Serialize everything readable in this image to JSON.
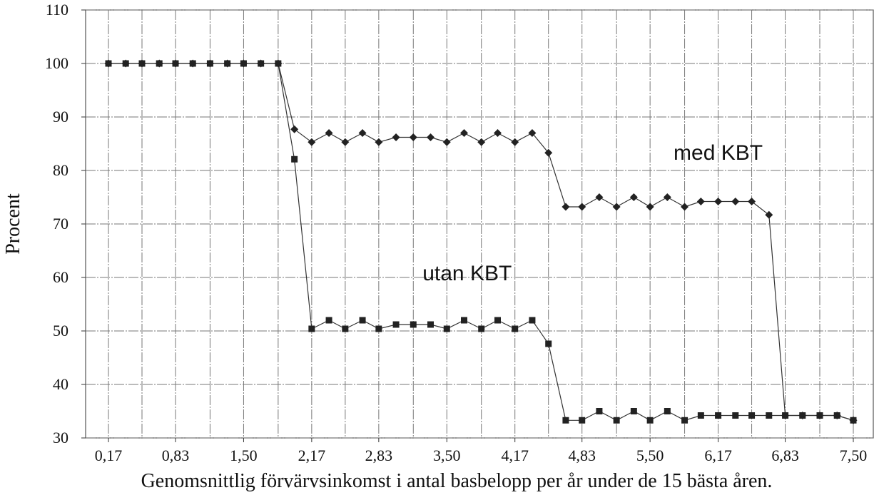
{
  "chart_data": {
    "type": "line",
    "title": "",
    "xlabel": "Genomsnittlig  förvärvsinkomst i antal basbelopp per år under de 15 bästa åren.",
    "ylabel": "Procent",
    "ylim": [
      30,
      110
    ],
    "xlim": [
      0.17,
      7.5
    ],
    "yticks": [
      30,
      40,
      50,
      60,
      70,
      80,
      90,
      100,
      110
    ],
    "xtick_labels": [
      "0,17",
      "0,83",
      "1,50",
      "2,17",
      "2,83",
      "3,50",
      "4,17",
      "4,83",
      "5,50",
      "6,17",
      "6,83",
      "7,50"
    ],
    "xtick_values": [
      0.17,
      0.83,
      1.5,
      2.17,
      2.83,
      3.5,
      4.17,
      4.83,
      5.5,
      6.17,
      6.83,
      7.5
    ],
    "grid": true,
    "x": [
      0.17,
      0.34,
      0.5,
      0.67,
      0.83,
      1.0,
      1.17,
      1.34,
      1.5,
      1.67,
      1.84,
      2.0,
      2.17,
      2.34,
      2.5,
      2.67,
      2.83,
      3.0,
      3.17,
      3.34,
      3.5,
      3.67,
      3.84,
      4.0,
      4.17,
      4.34,
      4.5,
      4.67,
      4.83,
      5.0,
      5.17,
      5.34,
      5.5,
      5.67,
      5.84,
      6.0,
      6.17,
      6.34,
      6.5,
      6.67,
      6.83,
      7.0,
      7.17,
      7.34,
      7.5
    ],
    "series": [
      {
        "name": "med KBT",
        "marker": "diamond",
        "values": [
          100,
          100,
          100,
          100,
          100,
          100,
          100,
          100,
          100,
          100,
          100,
          87.7,
          85.3,
          87.0,
          85.3,
          87.0,
          85.3,
          86.2,
          86.2,
          86.2,
          85.3,
          87.0,
          85.3,
          87.0,
          85.3,
          87.0,
          83.3,
          73.2,
          73.2,
          75.0,
          73.2,
          75.0,
          73.2,
          75.0,
          73.2,
          74.2,
          74.2,
          74.2,
          74.2,
          71.7,
          34.2,
          34.2,
          34.2,
          34.2,
          33.3
        ]
      },
      {
        "name": "utan KBT",
        "marker": "square",
        "values": [
          100,
          100,
          100,
          100,
          100,
          100,
          100,
          100,
          100,
          100,
          100,
          82.1,
          50.4,
          52.0,
          50.4,
          52.0,
          50.4,
          51.2,
          51.2,
          51.2,
          50.4,
          52.0,
          50.4,
          52.0,
          50.4,
          52.0,
          47.6,
          33.3,
          33.3,
          35.0,
          33.3,
          35.0,
          33.3,
          35.0,
          33.3,
          34.2,
          34.2,
          34.2,
          34.2,
          34.2,
          34.2,
          34.2,
          34.2,
          34.2,
          33.3
        ]
      }
    ],
    "annotations": [
      {
        "text": "med KBT",
        "series": "med KBT",
        "x": 6.17,
        "y": 82
      },
      {
        "text": "utan KBT",
        "series": "utan KBT",
        "x": 3.7,
        "y": 59.5
      }
    ]
  }
}
